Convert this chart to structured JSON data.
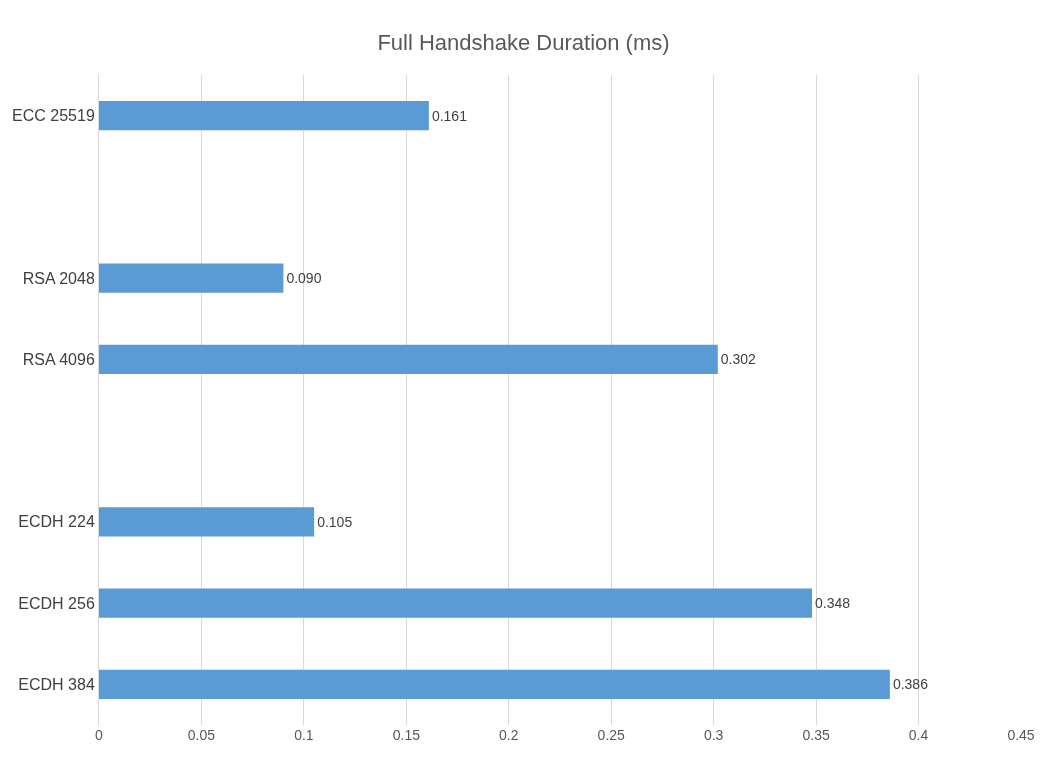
{
  "chart_data": {
    "type": "bar",
    "orientation": "horizontal",
    "title": "Full Handshake Duration (ms)",
    "categories": [
      "ECC 25519",
      null,
      "RSA 2048",
      "RSA 4096",
      null,
      "ECDH 224",
      "ECDH 256",
      "ECDH 384"
    ],
    "values": [
      0.161,
      null,
      0.09,
      0.302,
      null,
      0.105,
      0.348,
      0.386
    ],
    "value_labels": [
      "0.161",
      null,
      "0.090",
      "0.302",
      null,
      "0.105",
      "0.348",
      "0.386"
    ],
    "color": "#5b9bd5",
    "xlim": [
      0,
      0.45
    ],
    "xticks": [
      0,
      0.05,
      0.1,
      0.15,
      0.2,
      0.25,
      0.3,
      0.35,
      0.4,
      0.45
    ],
    "grid": "x"
  }
}
